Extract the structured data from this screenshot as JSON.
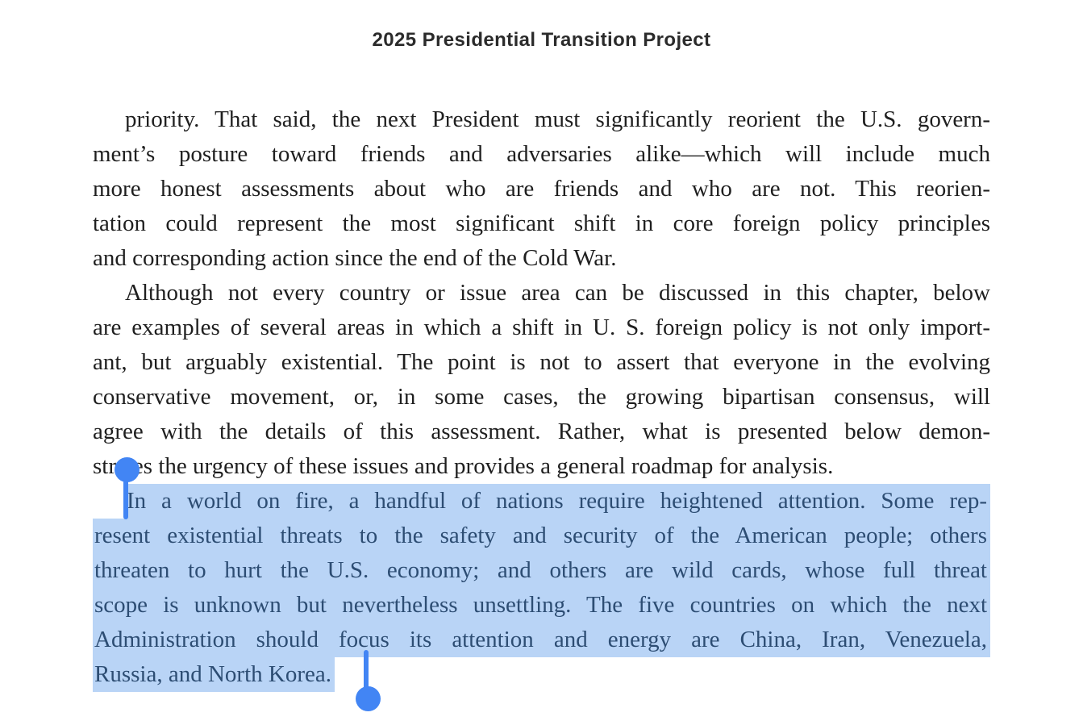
{
  "page": {
    "title": "2025 Presidential Transition Project"
  },
  "document": {
    "paragraphs": [
      {
        "selected": false,
        "lines": [
          "priority. That said, the next President must significantly reorient the U.S. govern-",
          "ment’s posture toward friends and adversaries alike—which will include much",
          "more honest assessments about who are friends and who are not. This reorien-",
          "tation could represent the most significant shift in core foreign policy principles",
          "and corresponding action since the end of the Cold War."
        ]
      },
      {
        "selected": false,
        "lines": [
          "Although not every country or issue area can be discussed in this chapter, below",
          "are examples of several areas in which a shift in U. S. foreign policy is not only import-",
          "ant, but arguably existential. The point is not to assert that everyone in the evolving",
          "conservative movement, or, in some cases, the growing bipartisan consensus, will",
          "agree with the details of this assessment. Rather, what is presented below demon-",
          "strates the urgency of these issues and provides a general roadmap for analysis."
        ]
      },
      {
        "selected": true,
        "lines": [
          "In a world on fire, a handful of nations require heightened attention. Some rep-",
          "resent existential threats to the safety and security of the American people; others",
          "threaten to hurt the U.S. economy; and others are wild cards, whose full threat",
          "scope is unknown but nevertheless unsettling. The five countries on which the next",
          "Administration should focus its attention and energy are China, Iran, Venezuela,",
          "Russia, and North Korea."
        ]
      }
    ]
  },
  "selection": {
    "selected_text": "In a world on fire, a handful of nations require heightened attention. Some represent existential threats to the safety and security of the American people; others threaten to hurt the U.S. economy; and others are wild cards, whose full threat scope is unknown but nevertheless unsettling. The five countries on which the next Administration should focus its attention and energy are China, Iran, Venezuela, Russia, and North Korea.",
    "highlight_color": "#b9d4f6",
    "selected_text_color": "#2d4d73",
    "handle_color": "#4285f4",
    "icons": [
      "selection-handle-start-icon",
      "selection-handle-end-icon"
    ]
  },
  "colors": {
    "background": "#ffffff",
    "title_text": "#2b2b2b",
    "body_text": "#1f1f1f"
  }
}
